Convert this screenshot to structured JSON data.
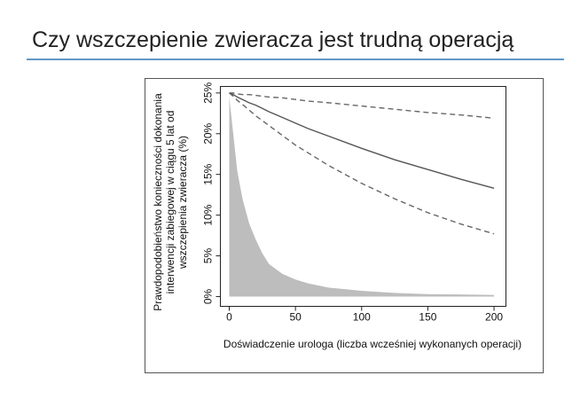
{
  "header": {
    "title": "Czy wszczepienie zwieracza jest trudną operacją"
  },
  "chart_data": {
    "type": "line",
    "ylabel": [
      "Prawdopodobieństwo konieczności dokonania",
      "interwencji zabiegowej w ciągu 5 lat od",
      "wszczepienia zwieracza (%)"
    ],
    "xlabel": "Doświadczenie urologa (liczba wcześniej wykonanych operacji)",
    "x": [
      0,
      3,
      6,
      10,
      15,
      20,
      25,
      30,
      40,
      50,
      60,
      75,
      100,
      125,
      150,
      175,
      200
    ],
    "series": [
      {
        "style": "area",
        "color": "#bdbdbd",
        "values": [
          24.5,
          20,
          15.5,
          12,
          9,
          7,
          5.3,
          4,
          2.8,
          2.1,
          1.6,
          1.1,
          0.7,
          0.45,
          0.3,
          0.25,
          0.2
        ]
      },
      {
        "style": "solid",
        "color": "#555555",
        "values": [
          25,
          24.8,
          24.5,
          24.2,
          23.8,
          23.5,
          23.1,
          22.7,
          22,
          21.3,
          20.6,
          19.7,
          18.2,
          16.8,
          15.6,
          14.4,
          13.3
        ]
      },
      {
        "style": "dashed",
        "color": "#666666",
        "values": [
          25,
          25,
          24.9,
          24.8,
          24.8,
          24.7,
          24.6,
          24.5,
          24.4,
          24.2,
          24,
          23.8,
          23.4,
          23,
          22.6,
          22.3,
          21.9
        ]
      },
      {
        "style": "dashed",
        "color": "#666666",
        "values": [
          25,
          24.6,
          24.1,
          23.6,
          22.9,
          22.2,
          21.6,
          21,
          19.8,
          18.6,
          17.6,
          16.1,
          13.9,
          12,
          10.3,
          8.9,
          7.7
        ]
      }
    ],
    "xlim": [
      -6.7,
      209
    ],
    "xticks": [
      0,
      50,
      100,
      150,
      200
    ],
    "ylim": [
      -1.2,
      25.8
    ],
    "yticks": [
      {
        "value": 0,
        "label": "0%"
      },
      {
        "value": 5,
        "label": "5%"
      },
      {
        "value": 10,
        "label": "10%"
      },
      {
        "value": 15,
        "label": "15%"
      },
      {
        "value": 20,
        "label": "20%"
      },
      {
        "value": 25,
        "label": "25%"
      }
    ]
  }
}
